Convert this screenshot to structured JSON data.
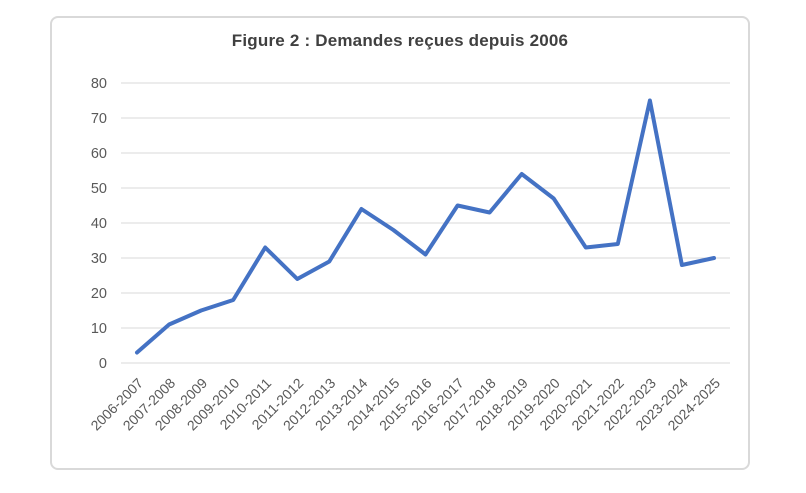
{
  "chart_data": {
    "type": "line",
    "title": "Figure 2 : Demandes reçues depuis 2006",
    "categories": [
      "2006-2007",
      "2007-2008",
      "2008-2009",
      "2009-2010",
      "2010-2011",
      "2011-2012",
      "2012-2013",
      "2013-2014",
      "2014-2015",
      "2015-2016",
      "2016-2017",
      "2017-2018",
      "2018-2019",
      "2019-2020",
      "2020-2021",
      "2021-2022",
      "2022-2023",
      "2023-2024",
      "2024-2025"
    ],
    "values": [
      3,
      11,
      15,
      18,
      33,
      24,
      29,
      44,
      38,
      31,
      45,
      43,
      54,
      47,
      33,
      34,
      75,
      28,
      30
    ],
    "xlabel": "",
    "ylabel": "",
    "ylim": [
      0,
      80
    ],
    "yticks": [
      0,
      10,
      20,
      30,
      40,
      50,
      60,
      70,
      80
    ],
    "grid": true,
    "legend": false,
    "x_label_rotation_deg": -45,
    "colors": {
      "line": "#4472C4",
      "title": "#404040",
      "tick_labels": "#595959",
      "gridlines": "#D9D9D9",
      "frame_border": "#D9D9D9",
      "background": "#FFFFFF"
    }
  }
}
